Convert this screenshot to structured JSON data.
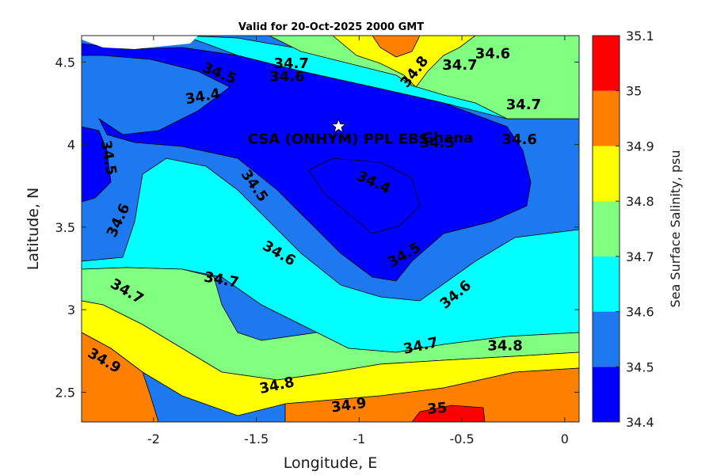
{
  "chart_data": {
    "type": "heatmap",
    "title": "Valid for 20-Oct-2025 2000 GMT",
    "xlabel": "Longitude, E",
    "ylabel": "Latitude, N",
    "xlim": [
      -2.35,
      0.07
    ],
    "ylim": [
      2.32,
      4.66
    ],
    "xticks": [
      {
        "value": -2,
        "label": "-2"
      },
      {
        "value": -1.5,
        "label": "-1.5"
      },
      {
        "value": -1,
        "label": "-1"
      },
      {
        "value": -0.5,
        "label": "-0.5"
      },
      {
        "value": 0,
        "label": "0"
      }
    ],
    "yticks": [
      {
        "value": 2.5,
        "label": "2.5"
      },
      {
        "value": 3,
        "label": "3"
      },
      {
        "value": 3.5,
        "label": "3.5"
      },
      {
        "value": 4,
        "label": "4"
      },
      {
        "value": 4.5,
        "label": "4.5"
      }
    ],
    "colorbar": {
      "label": "Sea Surface Salinity, psu",
      "levels": [
        34.4,
        34.5,
        34.6,
        34.7,
        34.8,
        34.9,
        35.0,
        35.1
      ],
      "tick_labels": [
        "34.4",
        "34.5",
        "34.6",
        "34.7",
        "34.8",
        "34.9",
        "35",
        "35.1"
      ],
      "colors": [
        "#0000ff",
        "#1e78f0",
        "#00ffff",
        "#80ff80",
        "#ffff00",
        "#ff8000",
        "#ff0000"
      ]
    },
    "contour_labels": [
      {
        "text": "34.7",
        "lon": -1.33,
        "lat": 4.49,
        "angle": 0
      },
      {
        "text": "34.5",
        "lon": -1.68,
        "lat": 4.43,
        "angle": 22
      },
      {
        "text": "34.6",
        "lon": -1.35,
        "lat": 4.41,
        "angle": 0
      },
      {
        "text": "34.4",
        "lon": -1.76,
        "lat": 4.29,
        "angle": -10
      },
      {
        "text": "34.8",
        "lon": -0.73,
        "lat": 4.44,
        "angle": -52
      },
      {
        "text": "34.7",
        "lon": -0.51,
        "lat": 4.48,
        "angle": 0
      },
      {
        "text": "34.6",
        "lon": -0.35,
        "lat": 4.55,
        "angle": 0
      },
      {
        "text": "34.7",
        "lon": -0.2,
        "lat": 4.24,
        "angle": 0
      },
      {
        "text": "34.6",
        "lon": -0.22,
        "lat": 4.03,
        "angle": 0
      },
      {
        "text": "34.5",
        "lon": -0.62,
        "lat": 4.01,
        "angle": 0
      },
      {
        "text": "34.5",
        "lon": -2.22,
        "lat": 3.92,
        "angle": 80
      },
      {
        "text": "34.5",
        "lon": -1.51,
        "lat": 3.75,
        "angle": 55
      },
      {
        "text": "34.4",
        "lon": -0.93,
        "lat": 3.77,
        "angle": 25
      },
      {
        "text": "34.6",
        "lon": -2.17,
        "lat": 3.54,
        "angle": -65
      },
      {
        "text": "34.6",
        "lon": -1.39,
        "lat": 3.34,
        "angle": 30
      },
      {
        "text": "34.5",
        "lon": -0.78,
        "lat": 3.33,
        "angle": -30
      },
      {
        "text": "34.7",
        "lon": -2.13,
        "lat": 3.11,
        "angle": 30
      },
      {
        "text": "34.7",
        "lon": -1.67,
        "lat": 3.18,
        "angle": 10
      },
      {
        "text": "34.6",
        "lon": -0.53,
        "lat": 3.09,
        "angle": -40
      },
      {
        "text": "34.7",
        "lon": -0.7,
        "lat": 2.78,
        "angle": -12
      },
      {
        "text": "34.8",
        "lon": -0.29,
        "lat": 2.78,
        "angle": 0
      },
      {
        "text": "34.9",
        "lon": -2.24,
        "lat": 2.69,
        "angle": 30
      },
      {
        "text": "34.8",
        "lon": -1.4,
        "lat": 2.54,
        "angle": -12
      },
      {
        "text": "34.9",
        "lon": -1.05,
        "lat": 2.42,
        "angle": -8
      },
      {
        "text": "35",
        "lon": -0.62,
        "lat": 2.4,
        "angle": -5
      }
    ],
    "site": {
      "name": "CSA (ONHYM) PPL EBS",
      "lon": -1.1,
      "lat": 4.11,
      "marker": "star"
    },
    "place_labels": [
      {
        "text": "Ghana",
        "lon": -0.57,
        "lat": 4.04
      }
    ]
  }
}
